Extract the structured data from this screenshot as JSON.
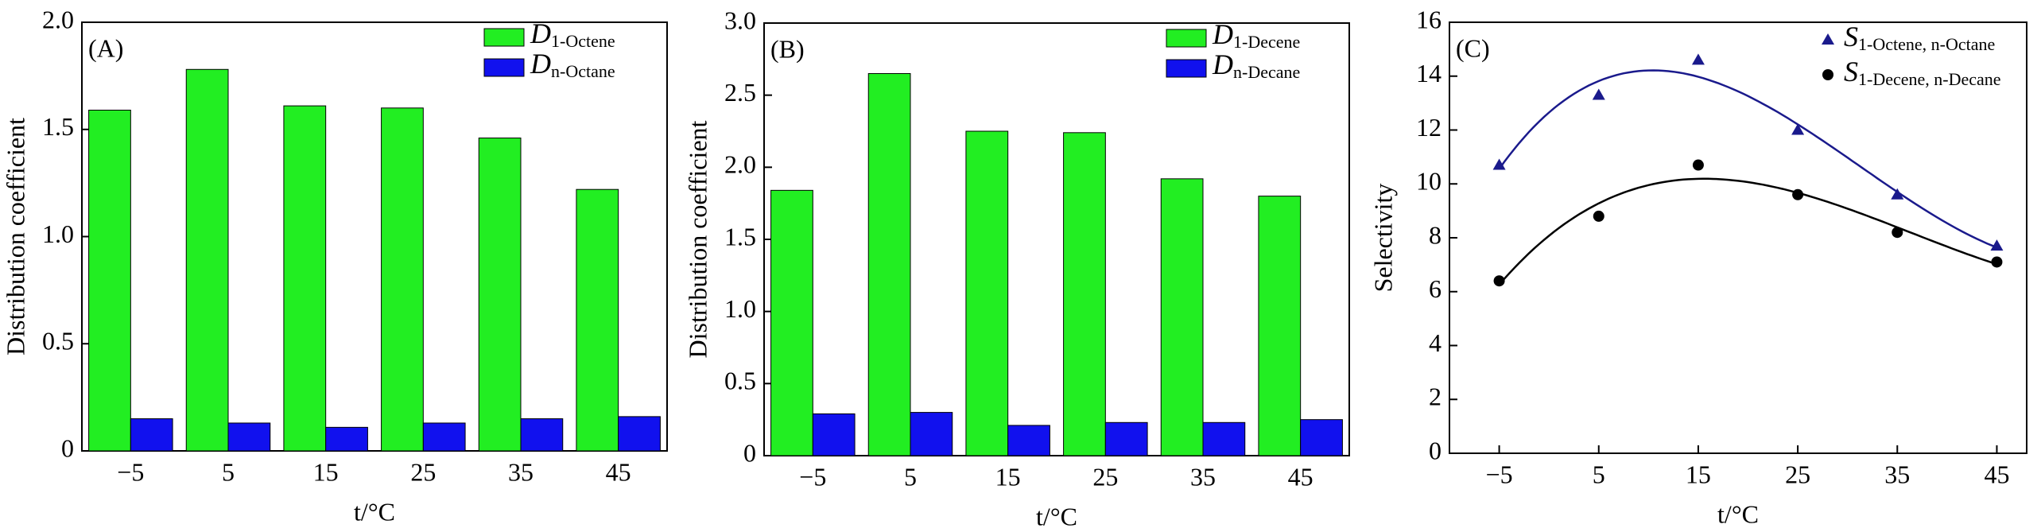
{
  "chart_data": [
    {
      "type": "bar",
      "label": "(A)",
      "ylabel": "Distribution coefficient",
      "xlabel": "t/°C",
      "categories": [
        "−5",
        "5",
        "15",
        "25",
        "35",
        "45"
      ],
      "series": [
        {
          "name": "D1-Octene",
          "color": "#22ee22",
          "values": [
            1.59,
            1.78,
            1.61,
            1.6,
            1.46,
            1.22
          ]
        },
        {
          "name": "Dn-Octane",
          "color": "#1111ee",
          "values": [
            0.15,
            0.13,
            0.11,
            0.13,
            0.15,
            0.16
          ]
        }
      ],
      "ylim": [
        0,
        2.0
      ],
      "yticks": [
        0,
        0.5,
        {
          "value": 1.0,
          "label": "1.0"
        },
        1.5,
        {
          "value": 2.0,
          "label": "2.0"
        }
      ]
    },
    {
      "type": "bar",
      "label": "(B)",
      "ylabel": "Distribution coefficient",
      "xlabel": "t/°C",
      "categories": [
        "−5",
        "5",
        "15",
        "25",
        "35",
        "45"
      ],
      "series": [
        {
          "name": "D1-Decene",
          "color": "#22ee22",
          "values": [
            1.84,
            2.65,
            2.25,
            2.24,
            1.92,
            1.8
          ]
        },
        {
          "name": "Dn-Decane",
          "color": "#1111ee",
          "values": [
            0.29,
            0.3,
            0.21,
            0.23,
            0.23,
            0.25
          ]
        }
      ],
      "ylim": [
        0,
        3.0
      ],
      "yticks": [
        0,
        0.5,
        {
          "value": 1.0,
          "label": "1.0"
        },
        1.5,
        {
          "value": 2.0,
          "label": "2.0"
        },
        2.5,
        {
          "value": 3.0,
          "label": "3.0"
        }
      ]
    },
    {
      "type": "scatter",
      "label": "(C)",
      "ylabel": "Selectivity",
      "xlabel": "t/°C",
      "x": [
        -5,
        5,
        15,
        25,
        35,
        45
      ],
      "series": [
        {
          "name": "S1-Octene, n-Octane",
          "color": "#1a1a8c",
          "marker": "triangle",
          "values": [
            10.7,
            13.3,
            14.6,
            12.0,
            9.6,
            7.7
          ]
        },
        {
          "name": "S1-Decene, n-Decane",
          "color": "#000000",
          "marker": "circle",
          "values": [
            6.4,
            8.8,
            10.7,
            9.6,
            8.2,
            7.1
          ]
        }
      ],
      "xlim": [
        -10,
        48
      ],
      "xticks": [
        {
          "value": -5,
          "label": "−5"
        },
        5,
        15,
        25,
        35,
        45
      ],
      "ylim": [
        0,
        16
      ],
      "yticks": [
        0,
        2,
        4,
        6,
        8,
        10,
        12,
        14,
        16
      ]
    }
  ]
}
